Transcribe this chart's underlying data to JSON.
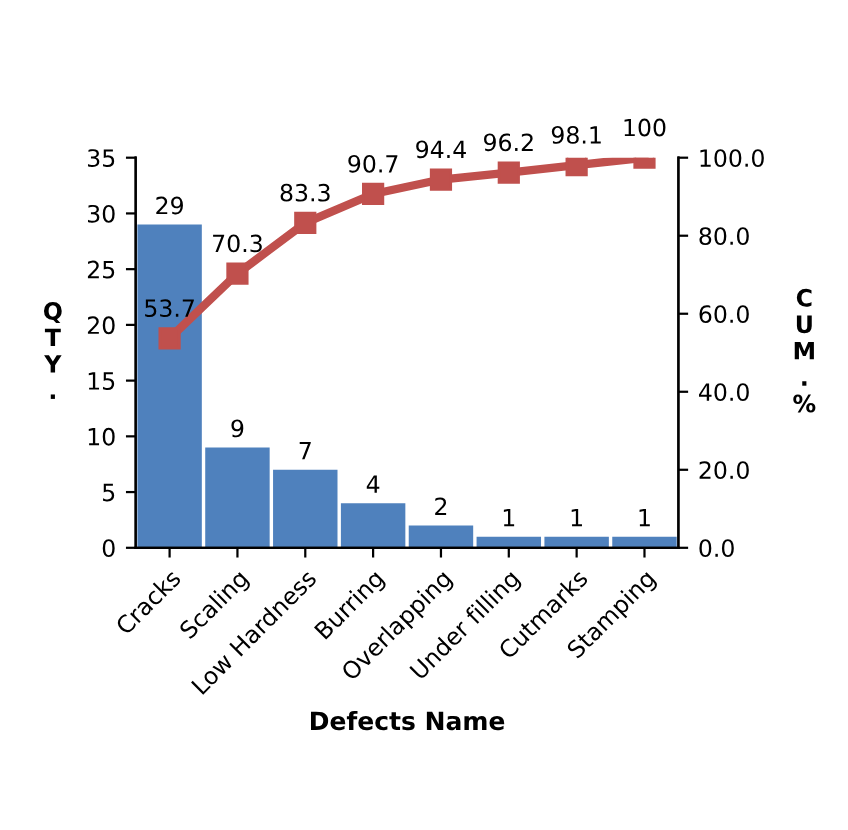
{
  "chart_data": {
    "type": "bar",
    "xlabel": "Defects Name",
    "ylabel": "Q\nT\nY\n.",
    "y2label": "C\nU\nM\n.\n%",
    "categories": [
      "Cracks",
      "Scaling",
      "Low Hardness",
      "Burring",
      "Overlapping",
      "Under filling",
      "Cutmarks",
      "Stamping"
    ],
    "series": [
      {
        "color": "#4f81bd",
        "values": [
          29,
          9,
          7,
          4,
          2,
          1,
          1,
          1
        ]
      },
      {
        "type": "line",
        "axis": "y2",
        "color": "#c0504d",
        "marker": "square",
        "values": [
          53.7,
          70.3,
          83.3,
          90.7,
          94.4,
          96.2,
          98.1,
          100
        ]
      }
    ],
    "ylim": [
      0,
      35
    ],
    "yticks": [
      0,
      5,
      10,
      15,
      20,
      25,
      30,
      35
    ],
    "y2lim": [
      0,
      100
    ],
    "y2ticks": [
      {
        "value": 0,
        "label": "0.0"
      },
      {
        "value": 20,
        "label": "20.0"
      },
      {
        "value": 40,
        "label": "40.0"
      },
      {
        "value": 60,
        "label": "60.0"
      },
      {
        "value": 80,
        "label": "80.0"
      },
      {
        "value": 100,
        "label": "100.0"
      }
    ],
    "data_labels": true,
    "grid": false,
    "legend": false
  }
}
